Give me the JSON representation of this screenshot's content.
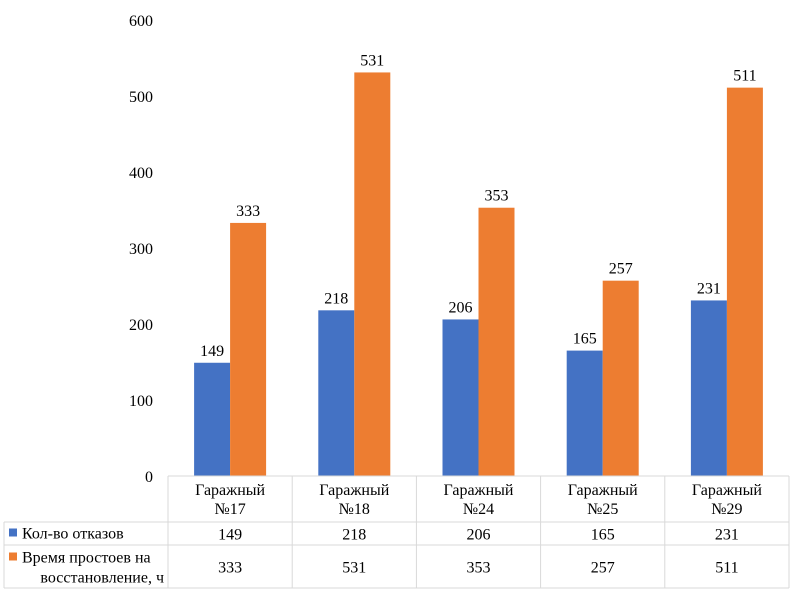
{
  "chart_data": {
    "type": "bar",
    "categories": [
      [
        "Гаражный",
        "№17"
      ],
      [
        "Гаражный",
        "№18"
      ],
      [
        "Гаражный",
        "№24"
      ],
      [
        "Гаражный",
        "№25"
      ],
      [
        "Гаражный",
        "№29"
      ]
    ],
    "series": [
      {
        "name": "Кол-во отказов",
        "name_lines": [
          "Кол-во отказов"
        ],
        "values": [
          149,
          218,
          206,
          165,
          231
        ],
        "color": "#4472C4"
      },
      {
        "name": "Время простоев на восстановление, ч",
        "name_lines": [
          "Время простоев на",
          "восстановление, ч"
        ],
        "values": [
          333,
          531,
          353,
          257,
          511
        ],
        "color": "#ED7D31"
      }
    ],
    "ylim": [
      0,
      600
    ],
    "yticks": [
      0,
      100,
      200,
      300,
      400,
      500,
      600
    ],
    "grid": false,
    "data_labels": true,
    "legend": "data-table"
  }
}
